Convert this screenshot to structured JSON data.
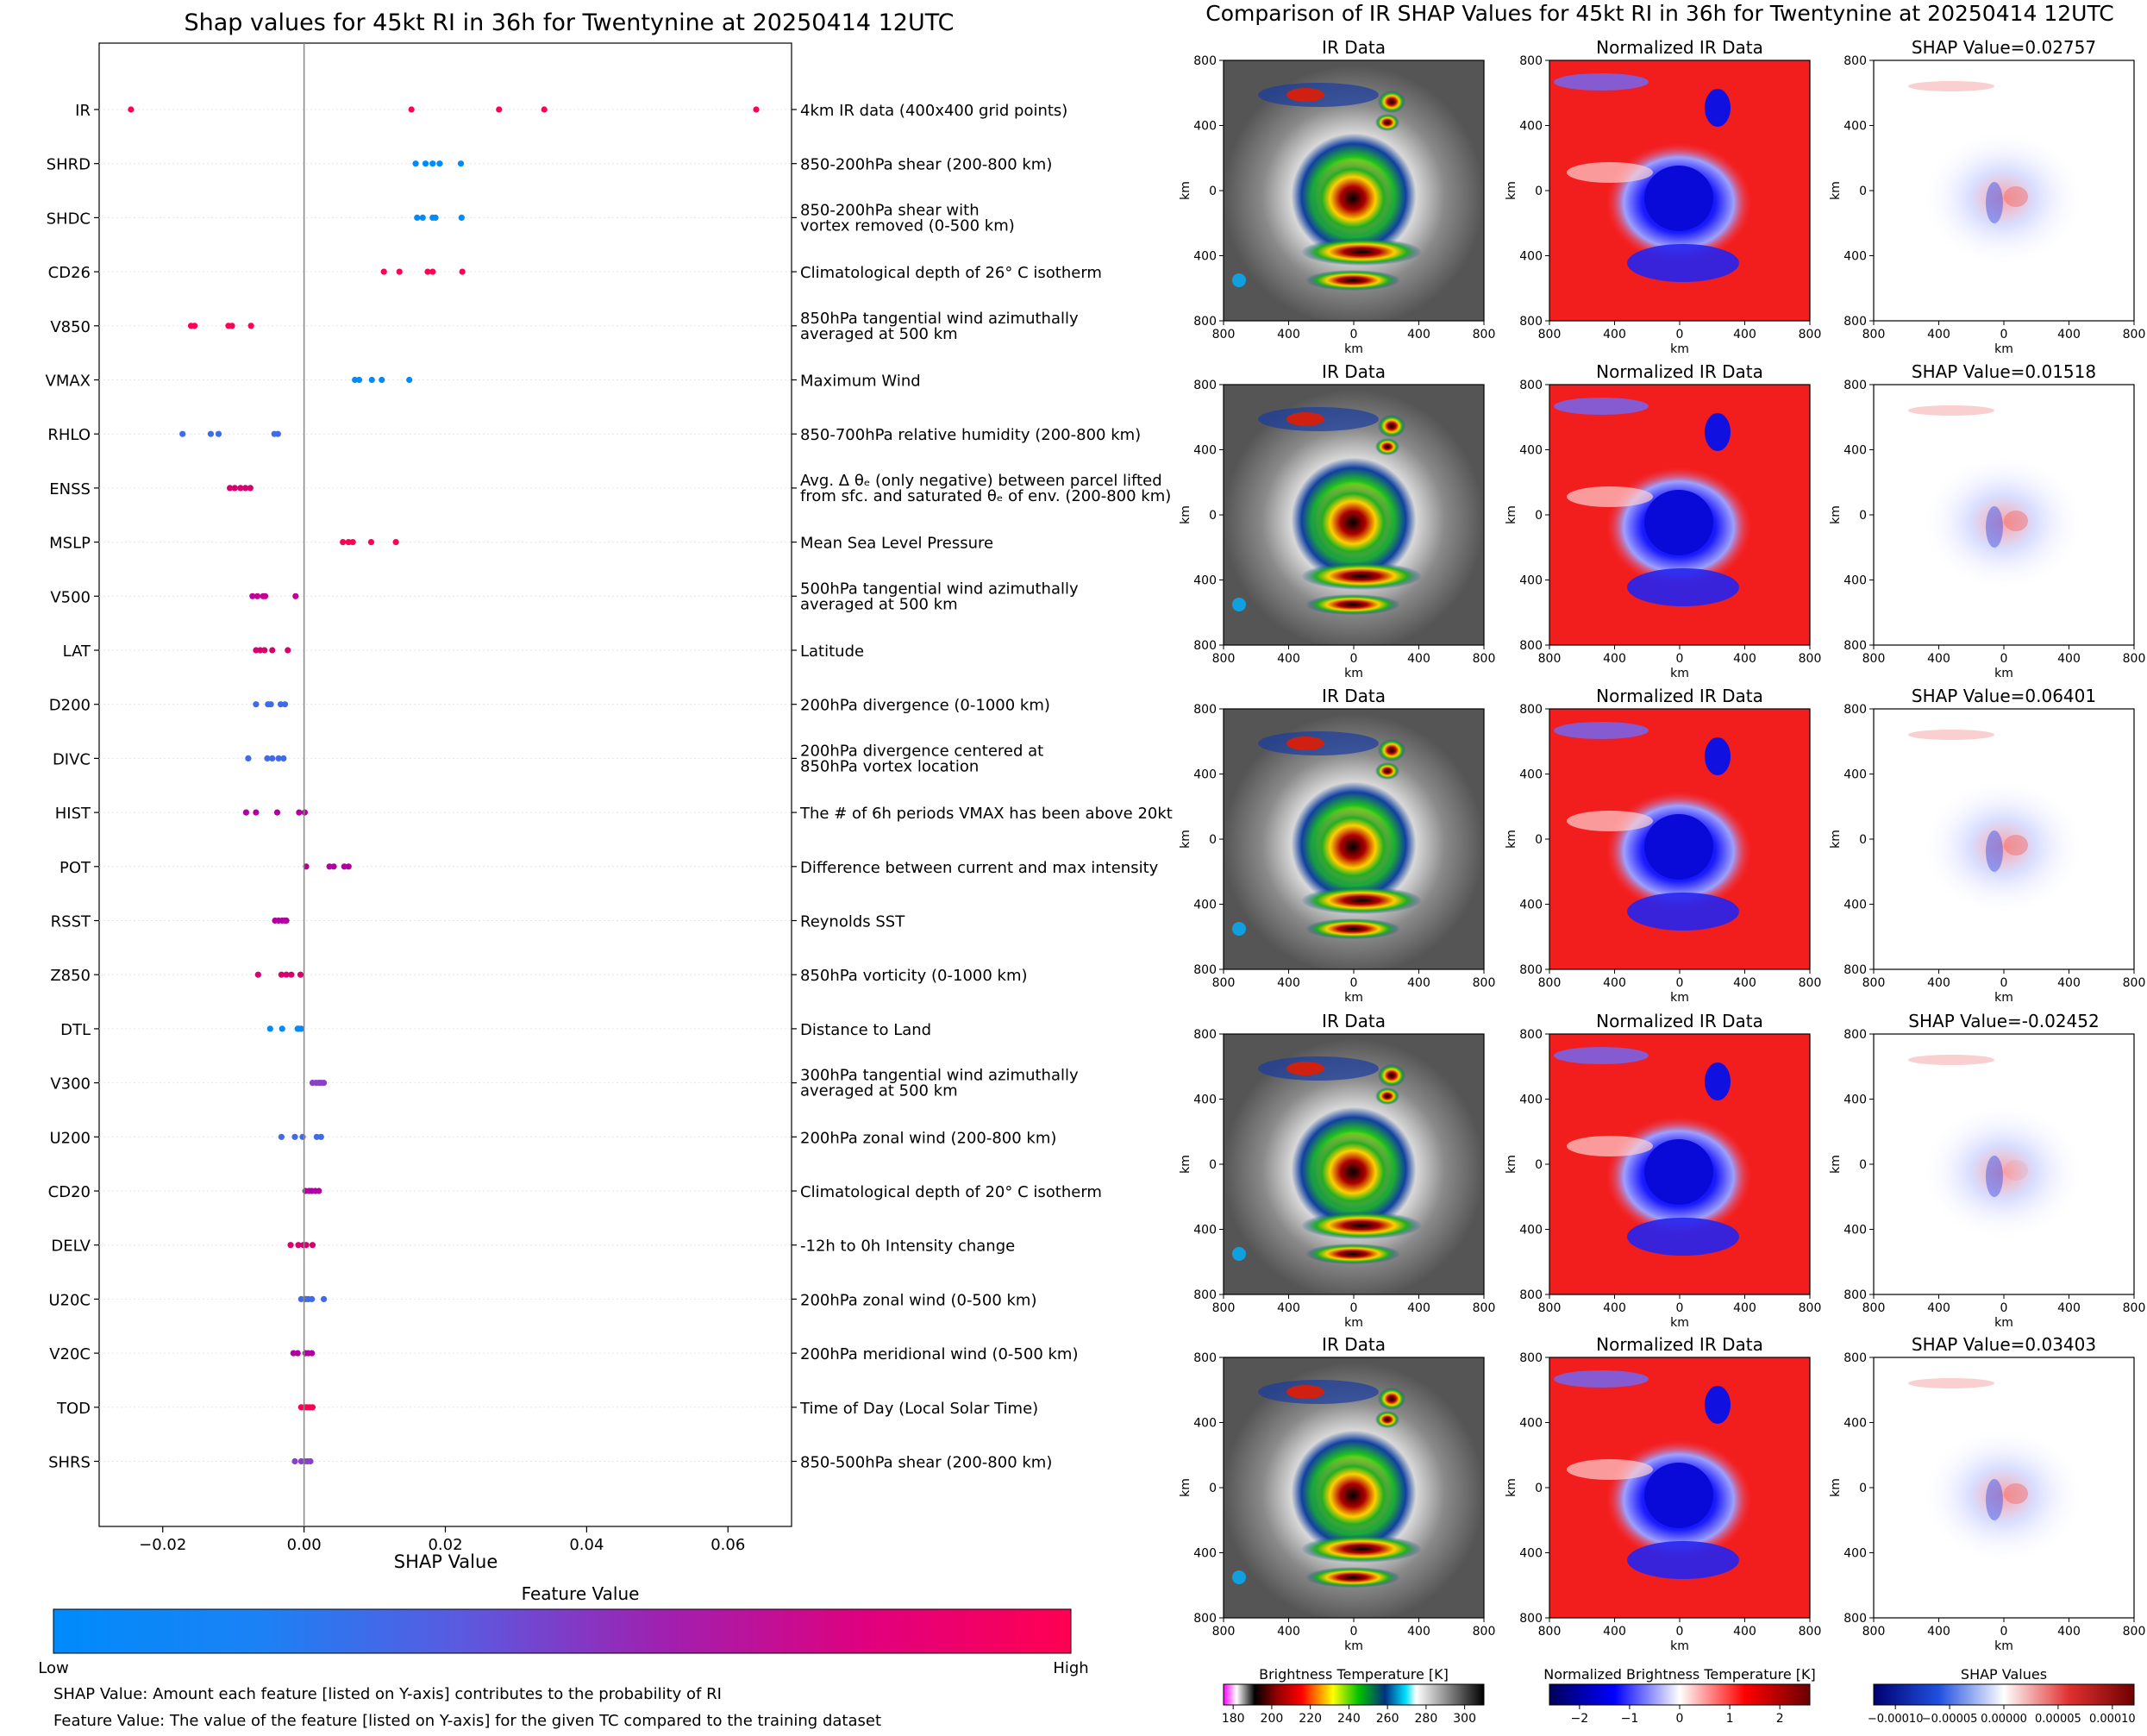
{
  "chart_data": [
    {
      "type": "scatter",
      "title": "Shap values for 45kt RI in 36h for Twentynine at 20250414 12UTC",
      "xlabel": "SHAP Value",
      "ylabel": "",
      "xlim": [
        -0.029,
        0.069
      ],
      "x_ticks": [
        "−0.02",
        "0.00",
        "0.02",
        "0.04",
        "0.06"
      ],
      "x_tick_values": [
        -0.02,
        0.0,
        0.02,
        0.04,
        0.06
      ],
      "grid": false,
      "colorbar": {
        "title": "Feature Value",
        "low_label": "Low",
        "high_label": "High",
        "colors": [
          "#008bfb",
          "#3f6be8",
          "#8a3fc8",
          "#c40096",
          "#ff0052"
        ]
      },
      "notes": [
        "SHAP Value: Amount each feature [listed on Y-axis] contributes to the probability of RI",
        "Feature Value: The value of the feature [listed on Y-axis] for the given TC compared to the training dataset"
      ],
      "features": [
        {
          "name": "IR",
          "desc": [
            "4km IR data (400x400 grid points)"
          ],
          "color": "#ff0052",
          "values": [
            -0.0245,
            0.0152,
            0.0276,
            0.034,
            0.064
          ]
        },
        {
          "name": "SHRD",
          "desc": [
            "850-200hPa shear (200-800 km)"
          ],
          "color": "#008bfb",
          "values": [
            0.0158,
            0.0172,
            0.0182,
            0.0192,
            0.0222
          ]
        },
        {
          "name": "SHDC",
          "desc": [
            "850-200hPa shear with",
            "vortex removed (0-500 km)"
          ],
          "color": "#008bfb",
          "values": [
            0.016,
            0.0168,
            0.0182,
            0.0186,
            0.0223
          ]
        },
        {
          "name": "CD26",
          "desc": [
            "Climatological depth of 26° C isotherm"
          ],
          "color": "#ff0052",
          "values": [
            0.0113,
            0.0135,
            0.0175,
            0.0182,
            0.0224
          ]
        },
        {
          "name": "V850",
          "desc": [
            "850hPa tangential wind azimuthally",
            "averaged at 500 km"
          ],
          "color": "#ff0052",
          "values": [
            -0.016,
            -0.0155,
            -0.0107,
            -0.0102,
            -0.0075
          ]
        },
        {
          "name": "VMAX",
          "desc": [
            "Maximum Wind"
          ],
          "color": "#008bfb",
          "values": [
            0.0072,
            0.0078,
            0.0096,
            0.011,
            0.0149
          ]
        },
        {
          "name": "RHLO",
          "desc": [
            "850-700hPa relative humidity (200-800 km)"
          ],
          "color": "#3f6be8",
          "values": [
            -0.0172,
            -0.0132,
            -0.0121,
            -0.0042,
            -0.0037
          ]
        },
        {
          "name": "ENSS",
          "desc": [
            "Avg. Δ θₑ (only negative) between parcel lifted",
            "from sfc. and saturated θₑ of env. (200-800 km)"
          ],
          "color": "#d6006e",
          "values": [
            -0.0105,
            -0.0098,
            -0.009,
            -0.0083,
            -0.0076
          ]
        },
        {
          "name": "MSLP",
          "desc": [
            "Mean Sea Level Pressure"
          ],
          "color": "#ff0052",
          "values": [
            0.0055,
            0.0063,
            0.0069,
            0.0095,
            0.013
          ]
        },
        {
          "name": "V500",
          "desc": [
            "500hPa tangential wind azimuthally",
            "averaged at 500 km"
          ],
          "color": "#c40096",
          "values": [
            -0.0073,
            -0.0066,
            -0.0058,
            -0.0055,
            -0.0012
          ]
        },
        {
          "name": "LAT",
          "desc": [
            "Latitude"
          ],
          "color": "#d6006e",
          "values": [
            -0.0068,
            -0.0062,
            -0.0056,
            -0.0045,
            -0.0023
          ]
        },
        {
          "name": "D200",
          "desc": [
            "200hPa divergence (0-1000 km)"
          ],
          "color": "#3f6be8",
          "values": [
            -0.0068,
            -0.0051,
            -0.0047,
            -0.0033,
            -0.0027
          ]
        },
        {
          "name": "DIVC",
          "desc": [
            "200hPa divergence centered at",
            "850hPa vortex location"
          ],
          "color": "#3f6be8",
          "values": [
            -0.0079,
            -0.0052,
            -0.0045,
            -0.0036,
            -0.0029
          ]
        },
        {
          "name": "HIST",
          "desc": [
            "The # of 6h periods VMAX has been above 20kt"
          ],
          "color": "#b000a0",
          "values": [
            -0.0082,
            -0.0068,
            -0.0038,
            -0.0007,
            0.0001
          ]
        },
        {
          "name": "POT",
          "desc": [
            "Difference between current and max intensity"
          ],
          "color": "#b000a0",
          "values": [
            0.0003,
            0.0036,
            0.0042,
            0.0057,
            0.0063
          ]
        },
        {
          "name": "RSST",
          "desc": [
            "Reynolds SST"
          ],
          "color": "#b000a0",
          "values": [
            -0.0041,
            -0.0036,
            -0.0031,
            -0.0027,
            -0.0025
          ]
        },
        {
          "name": "Z850",
          "desc": [
            "850hPa vorticity (0-1000 km)"
          ],
          "color": "#d6006e",
          "values": [
            -0.0065,
            -0.0032,
            -0.0025,
            -0.0018,
            -0.0005
          ]
        },
        {
          "name": "DTL",
          "desc": [
            "Distance to Land"
          ],
          "color": "#008bfb",
          "values": [
            -0.0048,
            -0.0031,
            -0.0009,
            -0.0007,
            -0.0004
          ]
        },
        {
          "name": "V300",
          "desc": [
            "300hPa tangential wind azimuthally",
            "averaged at 500 km"
          ],
          "color": "#8a3fc8",
          "values": [
            0.0012,
            0.0017,
            0.0021,
            0.0024,
            0.0028
          ]
        },
        {
          "name": "U200",
          "desc": [
            "200hPa zonal wind (200-800 km)"
          ],
          "color": "#3f6be8",
          "values": [
            -0.0032,
            -0.0013,
            -0.0002,
            0.0018,
            0.0024
          ]
        },
        {
          "name": "CD20",
          "desc": [
            "Climatological depth of 20° C isotherm"
          ],
          "color": "#b000a0",
          "values": [
            0.0002,
            0.0007,
            0.0011,
            0.0016,
            0.0021
          ]
        },
        {
          "name": "DELV",
          "desc": [
            "-12h to 0h Intensity change"
          ],
          "color": "#d6006e",
          "values": [
            -0.0019,
            -0.0008,
            -0.0001,
            0.0003,
            0.0012
          ]
        },
        {
          "name": "U20C",
          "desc": [
            "200hPa zonal wind (0-500 km)"
          ],
          "color": "#3f6be8",
          "values": [
            -0.0004,
            0.0002,
            0.0006,
            0.0011,
            0.0028
          ]
        },
        {
          "name": "V20C",
          "desc": [
            "200hPa meridional wind (0-500 km)"
          ],
          "color": "#b000a0",
          "values": [
            -0.0015,
            -0.0009,
            0.0002,
            0.0006,
            0.0011
          ]
        },
        {
          "name": "TOD",
          "desc": [
            "Time of Day (Local Solar Time)"
          ],
          "color": "#ff0052",
          "values": [
            -0.0004,
            0.0001,
            0.0004,
            0.0008,
            0.0012
          ]
        },
        {
          "name": "SHRS",
          "desc": [
            "850-500hPa shear (200-800 km)"
          ],
          "color": "#8a3fc8",
          "values": [
            -0.0013,
            -0.0004,
            0.0001,
            0.0005,
            0.0009
          ]
        }
      ]
    },
    {
      "type": "heatmap",
      "title": "Comparison of IR SHAP Values for 45kt RI in 36h for Twentynine at 20250414 12UTC",
      "panel_titles": [
        "IR Data",
        "Normalized IR Data"
      ],
      "shap_titles": [
        "SHAP Value=0.02757",
        "SHAP Value=0.01518",
        "SHAP Value=0.06401",
        "SHAP Value=-0.02452",
        "SHAP Value=0.03403"
      ],
      "axis_label": "km",
      "y_ticks": [
        "800",
        "400",
        "0",
        "400",
        "800"
      ],
      "x_ticks": [
        "800",
        "400",
        "0",
        "400",
        "800"
      ],
      "colorbars": [
        {
          "title": "Brightness Temperature [K]",
          "ticks": [
            "180",
            "200",
            "220",
            "240",
            "260",
            "280",
            "300"
          ],
          "tick_values": [
            180,
            200,
            220,
            240,
            260,
            280,
            300
          ],
          "range": [
            175,
            310
          ]
        },
        {
          "title": "Normalized Brightness Temperature [K]",
          "ticks": [
            "−2",
            "−1",
            "0",
            "1",
            "2"
          ],
          "tick_values": [
            -2,
            -1,
            0,
            1,
            2
          ],
          "range": [
            -2.6,
            2.6
          ]
        },
        {
          "title": "SHAP Values",
          "ticks": [
            "−0.00010",
            "−0.00005",
            "0.00000",
            "0.00005",
            "0.00010"
          ],
          "tick_values": [
            -0.0001,
            -5e-05,
            0,
            5e-05,
            0.0001
          ],
          "range": [
            -0.00012,
            0.00012
          ]
        }
      ]
    }
  ]
}
